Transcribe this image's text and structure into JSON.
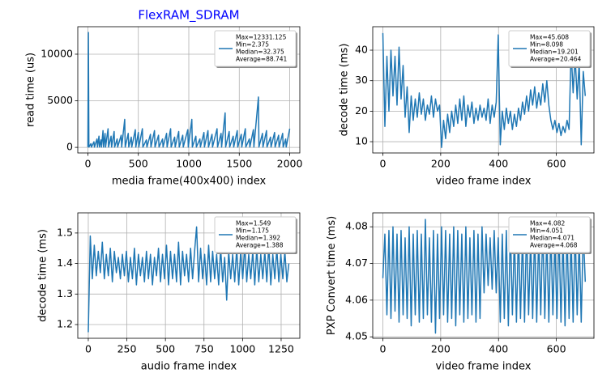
{
  "chart_data": [
    {
      "type": "line",
      "title": "FlexRAM_SDRAM",
      "title_color": "#0000ff",
      "xlabel": "media frame(400x400) index",
      "ylabel": "read time (us)",
      "xlim": [
        -100,
        2100
      ],
      "ylim": [
        -600,
        12950
      ],
      "xticks": [
        0,
        500,
        1000,
        1500,
        2000
      ],
      "yticks": [
        0,
        5000,
        10000
      ],
      "grid": true,
      "legend": {
        "loc": "upper right",
        "lines": [
          "Max=12331.125",
          "Min=2.375",
          "Median=32.375",
          "Average=88.741"
        ]
      },
      "x": [
        0,
        5,
        10,
        30,
        35,
        60,
        65,
        90,
        95,
        110,
        115,
        130,
        135,
        150,
        155,
        170,
        175,
        200,
        205,
        230,
        235,
        260,
        265,
        290,
        295,
        330,
        335,
        365,
        370,
        400,
        405,
        430,
        435,
        470,
        475,
        500,
        505,
        540,
        545,
        580,
        585,
        620,
        625,
        660,
        665,
        700,
        705,
        740,
        745,
        780,
        785,
        820,
        825,
        860,
        865,
        900,
        905,
        940,
        945,
        990,
        995,
        1030,
        1035,
        1070,
        1075,
        1110,
        1115,
        1150,
        1155,
        1190,
        1195,
        1230,
        1235,
        1280,
        1285,
        1320,
        1325,
        1360,
        1365,
        1400,
        1405,
        1440,
        1445,
        1480,
        1485,
        1520,
        1525,
        1560,
        1565,
        1600,
        1605,
        1640,
        1645,
        1690,
        1695,
        1730,
        1735,
        1770,
        1775,
        1810,
        1815,
        1850,
        1855,
        1890,
        1895,
        1930,
        1935,
        1960,
        1965,
        2000
      ],
      "series": [
        {
          "color": "#1f77b4",
          "values": [
            30,
            12331.125,
            30,
            400,
            30,
            600,
            30,
            900,
            30,
            1200,
            30,
            800,
            30,
            1800,
            30,
            1500,
            30,
            2000,
            30,
            1200,
            30,
            1700,
            30,
            900,
            30,
            1300,
            30,
            3000,
            30,
            1500,
            30,
            1100,
            30,
            1900,
            30,
            1600,
            30,
            2000,
            30,
            800,
            30,
            1400,
            30,
            1800,
            30,
            1300,
            30,
            900,
            30,
            1500,
            30,
            2000,
            30,
            1100,
            30,
            1700,
            30,
            1300,
            30,
            1900,
            30,
            3000,
            30,
            1200,
            30,
            900,
            30,
            1600,
            30,
            1800,
            30,
            1400,
            30,
            2000,
            30,
            1500,
            30,
            3700,
            30,
            1700,
            30,
            1200,
            30,
            1800,
            30,
            1400,
            30,
            2000,
            30,
            900,
            30,
            1900,
            30,
            5400,
            30,
            1500,
            30,
            1800,
            30,
            1100,
            30,
            1600,
            30,
            1300,
            30,
            1500,
            30,
            900,
            30,
            2000
          ]
        }
      ]
    },
    {
      "type": "line",
      "xlabel": "video frame index",
      "ylabel": "decode time (ms)",
      "xlim": [
        -35,
        730
      ],
      "ylim": [
        6.3,
        47.7
      ],
      "xticks": [
        0,
        200,
        400,
        600
      ],
      "yticks": [
        10,
        20,
        30,
        40
      ],
      "grid": true,
      "legend": {
        "loc": "upper right",
        "lines": [
          "Max=45.608",
          "Min=8.098",
          "Median=19.201",
          "Average=20.464"
        ]
      },
      "x": [
        0,
        7,
        14,
        21,
        28,
        35,
        42,
        49,
        56,
        63,
        70,
        77,
        84,
        91,
        98,
        105,
        112,
        119,
        126,
        133,
        140,
        147,
        154,
        161,
        168,
        175,
        182,
        189,
        196,
        203,
        210,
        217,
        224,
        231,
        238,
        245,
        252,
        259,
        266,
        273,
        280,
        287,
        294,
        301,
        308,
        315,
        322,
        329,
        336,
        343,
        350,
        357,
        364,
        371,
        378,
        385,
        392,
        399,
        406,
        413,
        420,
        427,
        434,
        441,
        448,
        455,
        462,
        469,
        476,
        483,
        490,
        497,
        504,
        511,
        518,
        525,
        532,
        539,
        546,
        553,
        560,
        567,
        574,
        581,
        588,
        595,
        602,
        609,
        616,
        623,
        630,
        637,
        644,
        651,
        658,
        665,
        672,
        679,
        686,
        693,
        700
      ],
      "series": [
        {
          "color": "#1f77b4",
          "values": [
            45.6,
            15,
            38,
            20,
            40,
            25,
            38,
            22,
            41,
            24,
            35,
            18,
            28,
            13,
            25,
            17,
            24,
            18,
            26,
            19,
            24,
            17,
            22,
            19,
            25,
            18,
            24,
            20,
            22,
            8.1,
            17,
            11,
            19,
            13,
            20,
            15,
            22,
            16,
            24,
            17,
            25,
            15,
            22,
            18,
            23,
            16,
            21,
            17,
            22,
            18,
            21,
            17,
            24,
            16,
            22,
            18,
            23,
            45,
            9,
            20,
            14,
            21,
            16,
            20,
            14,
            19,
            15,
            21,
            17,
            23,
            19,
            25,
            20,
            27,
            22,
            28,
            21,
            26,
            22,
            29,
            23,
            30,
            22,
            17,
            14,
            17,
            13,
            16,
            12,
            15,
            13,
            17,
            14,
            40,
            26,
            38,
            24,
            36,
            9,
            33,
            25
          ]
        }
      ]
    },
    {
      "type": "line",
      "xlabel": "audio frame index",
      "ylabel": "decode time (ms)",
      "xlim": [
        -68,
        1371
      ],
      "ylim": [
        1.155,
        1.566
      ],
      "xticks": [
        0,
        250,
        500,
        750,
        1000,
        1250
      ],
      "yticks": [
        1.2,
        1.3,
        1.4,
        1.5
      ],
      "grid": true,
      "legend": {
        "loc": "upper right",
        "lines": [
          "Max=1.549",
          "Min=1.175",
          "Median=1.392",
          "Average=1.388"
        ]
      },
      "x": [
        0,
        13,
        26,
        39,
        52,
        65,
        78,
        91,
        104,
        117,
        130,
        143,
        156,
        169,
        182,
        195,
        208,
        221,
        234,
        247,
        260,
        273,
        286,
        299,
        312,
        325,
        338,
        351,
        364,
        377,
        390,
        403,
        416,
        429,
        442,
        455,
        468,
        481,
        494,
        507,
        520,
        533,
        546,
        559,
        572,
        585,
        598,
        611,
        624,
        637,
        650,
        663,
        676,
        689,
        702,
        715,
        728,
        741,
        754,
        767,
        780,
        793,
        806,
        819,
        832,
        845,
        858,
        871,
        884,
        897,
        910,
        923,
        936,
        949,
        962,
        975,
        988,
        1001,
        1014,
        1027,
        1040,
        1053,
        1066,
        1079,
        1092,
        1105,
        1118,
        1131,
        1144,
        1157,
        1170,
        1183,
        1196,
        1209,
        1222,
        1235,
        1248,
        1261,
        1274,
        1287,
        1300
      ],
      "series": [
        {
          "color": "#1f77b4",
          "values": [
            1.175,
            1.49,
            1.35,
            1.46,
            1.36,
            1.44,
            1.37,
            1.47,
            1.35,
            1.43,
            1.36,
            1.45,
            1.34,
            1.44,
            1.37,
            1.42,
            1.35,
            1.43,
            1.36,
            1.44,
            1.34,
            1.42,
            1.35,
            1.45,
            1.33,
            1.43,
            1.36,
            1.42,
            1.34,
            1.44,
            1.35,
            1.43,
            1.33,
            1.42,
            1.36,
            1.45,
            1.34,
            1.43,
            1.35,
            1.46,
            1.33,
            1.44,
            1.35,
            1.43,
            1.34,
            1.47,
            1.33,
            1.44,
            1.36,
            1.43,
            1.34,
            1.45,
            1.35,
            1.44,
            1.52,
            1.34,
            1.45,
            1.35,
            1.43,
            1.33,
            1.46,
            1.34,
            1.44,
            1.35,
            1.43,
            1.33,
            1.45,
            1.34,
            1.42,
            1.28,
            1.44,
            1.35,
            1.43,
            1.34,
            1.45,
            1.33,
            1.44,
            1.35,
            1.46,
            1.34,
            1.43,
            1.35,
            1.44,
            1.33,
            1.45,
            1.34,
            1.43,
            1.35,
            1.44,
            1.34,
            1.46,
            1.33,
            1.43,
            1.35,
            1.45,
            1.34,
            1.43,
            1.35,
            1.44,
            1.34,
            1.4
          ]
        }
      ]
    },
    {
      "type": "line",
      "xlabel": "video frame index",
      "ylabel": "PXP Convert time (ms)",
      "xlim": [
        -35,
        730
      ],
      "ylim": [
        4.0496,
        4.0838
      ],
      "xticks": [
        0,
        200,
        400,
        600
      ],
      "yticks": [
        4.05,
        4.06,
        4.07,
        4.08
      ],
      "grid": true,
      "legend": {
        "loc": "upper right",
        "lines": [
          "Max=4.082",
          "Min=4.051",
          "Median=4.071",
          "Average=4.068"
        ]
      },
      "x": [
        0,
        7,
        14,
        21,
        28,
        35,
        42,
        49,
        56,
        63,
        70,
        77,
        84,
        91,
        98,
        105,
        112,
        119,
        126,
        133,
        140,
        147,
        154,
        161,
        168,
        175,
        182,
        189,
        196,
        203,
        210,
        217,
        224,
        231,
        238,
        245,
        252,
        259,
        266,
        273,
        280,
        287,
        294,
        301,
        308,
        315,
        322,
        329,
        336,
        343,
        350,
        357,
        364,
        371,
        378,
        385,
        392,
        399,
        406,
        413,
        420,
        427,
        434,
        441,
        448,
        455,
        462,
        469,
        476,
        483,
        490,
        497,
        504,
        511,
        518,
        525,
        532,
        539,
        546,
        553,
        560,
        567,
        574,
        581,
        588,
        595,
        602,
        609,
        616,
        623,
        630,
        637,
        644,
        651,
        658,
        665,
        672,
        679,
        686,
        693,
        700
      ],
      "series": [
        {
          "color": "#1f77b4",
          "values": [
            4.066,
            4.078,
            4.056,
            4.079,
            4.055,
            4.08,
            4.057,
            4.078,
            4.054,
            4.079,
            4.056,
            4.077,
            4.055,
            4.08,
            4.053,
            4.078,
            4.056,
            4.079,
            4.054,
            4.078,
            4.055,
            4.082,
            4.056,
            4.077,
            4.054,
            4.079,
            4.051,
            4.078,
            4.055,
            4.08,
            4.056,
            4.079,
            4.054,
            4.078,
            4.055,
            4.08,
            4.053,
            4.079,
            4.056,
            4.078,
            4.054,
            4.08,
            4.055,
            4.077,
            4.056,
            4.079,
            4.054,
            4.078,
            4.055,
            4.08,
            4.062,
            4.078,
            4.064,
            4.077,
            4.063,
            4.079,
            4.062,
            4.077,
            4.054,
            4.078,
            4.055,
            4.079,
            4.053,
            4.08,
            4.056,
            4.078,
            4.054,
            4.079,
            4.055,
            4.078,
            4.054,
            4.08,
            4.056,
            4.077,
            4.055,
            4.079,
            4.054,
            4.078,
            4.056,
            4.08,
            4.055,
            4.078,
            4.054,
            4.079,
            4.056,
            4.077,
            4.055,
            4.08,
            4.054,
            4.078,
            4.053,
            4.079,
            4.055,
            4.078,
            4.054,
            4.08,
            4.056,
            4.077,
            4.054,
            4.079,
            4.065
          ]
        }
      ]
    }
  ]
}
